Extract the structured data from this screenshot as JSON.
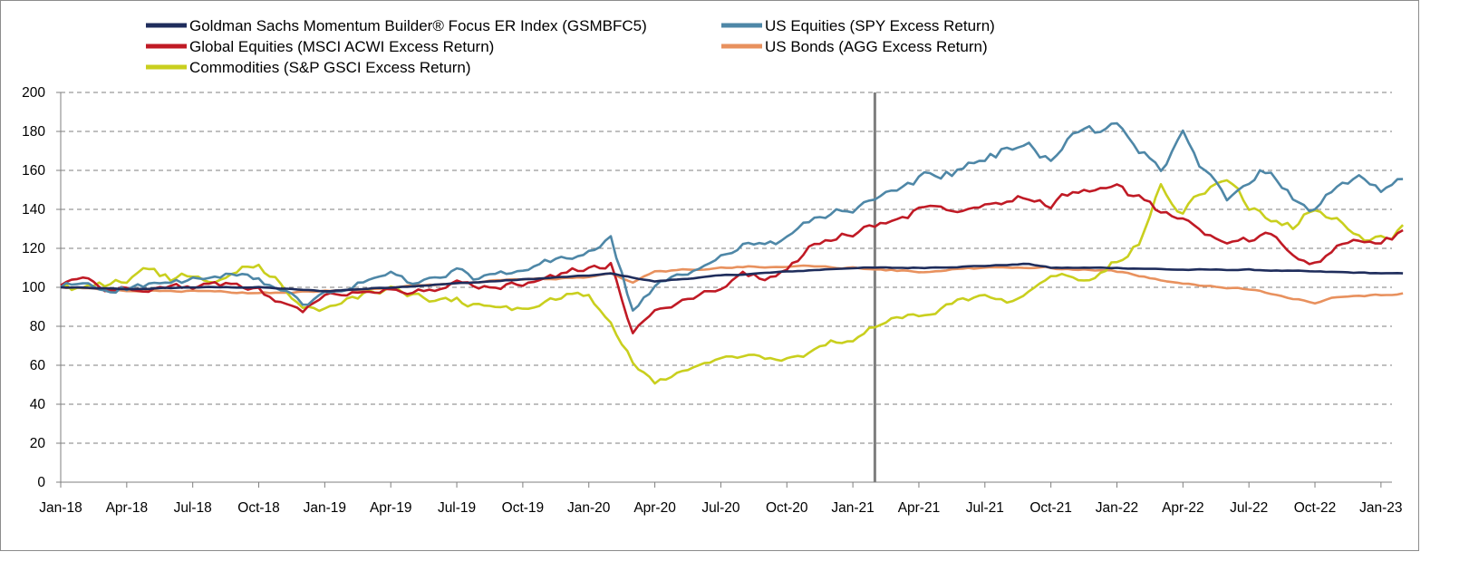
{
  "chart_data": {
    "type": "line",
    "title": "",
    "xlabel": "",
    "ylabel": "",
    "ylim": [
      0,
      200
    ],
    "y_ticks": [
      "0",
      "20",
      "40",
      "60",
      "80",
      "100",
      "120",
      "140",
      "160",
      "180",
      "200"
    ],
    "x_ticks": [
      "Jan-18",
      "Apr-18",
      "Jul-18",
      "Oct-18",
      "Jan-19",
      "Apr-19",
      "Jul-19",
      "Oct-19",
      "Jan-20",
      "Apr-20",
      "Jul-20",
      "Oct-20",
      "Jan-21",
      "Apr-21",
      "Jul-21",
      "Oct-21",
      "Jan-22",
      "Apr-22",
      "Jul-22",
      "Oct-22",
      "Jan-23"
    ],
    "grid": "horizontal dashed",
    "legend_position": "top",
    "vertical_marker": "Feb-21",
    "series": [
      {
        "name": "Goldman Sachs Momentum Builder® Focus ER Index (GSMBFC5)",
        "color": "#1f2d5c",
        "points": [
          [
            "Jan-18",
            100
          ],
          [
            "Apr-18",
            99
          ],
          [
            "Jul-18",
            100
          ],
          [
            "Oct-18",
            100
          ],
          [
            "Jan-19",
            98
          ],
          [
            "Apr-19",
            100
          ],
          [
            "Jul-19",
            102
          ],
          [
            "Oct-19",
            104
          ],
          [
            "Jan-20",
            106
          ],
          [
            "Feb-20",
            107
          ],
          [
            "Apr-20",
            103
          ],
          [
            "Jul-20",
            106
          ],
          [
            "Oct-20",
            108
          ],
          [
            "Jan-21",
            110
          ],
          [
            "Apr-21",
            110
          ],
          [
            "Jul-21",
            111
          ],
          [
            "Sep-21",
            112
          ],
          [
            "Oct-21",
            110
          ],
          [
            "Jan-22",
            110
          ],
          [
            "Apr-22",
            109
          ],
          [
            "Jul-22",
            109
          ],
          [
            "Oct-22",
            108
          ],
          [
            "Feb-23",
            107
          ]
        ]
      },
      {
        "name": "US Equities (SPY Excess Return)",
        "color": "#4e87a7",
        "points": [
          [
            "Jan-18",
            100
          ],
          [
            "Feb-18",
            102
          ],
          [
            "Mar-18",
            99
          ],
          [
            "Apr-18",
            100
          ],
          [
            "Jun-18",
            102
          ],
          [
            "Sep-18",
            106
          ],
          [
            "Oct-18",
            103
          ],
          [
            "Nov-18",
            100
          ],
          [
            "Dec-18",
            90
          ],
          [
            "Jan-19",
            96
          ],
          [
            "Apr-19",
            107
          ],
          [
            "May-19",
            101
          ],
          [
            "Jul-19",
            108
          ],
          [
            "Aug-19",
            104
          ],
          [
            "Oct-19",
            108
          ],
          [
            "Nov-19",
            112
          ],
          [
            "Jan-20",
            118
          ],
          [
            "Feb-20",
            124
          ],
          [
            "Mar-20",
            88
          ],
          [
            "Apr-20",
            100
          ],
          [
            "Jun-20",
            110
          ],
          [
            "Jul-20",
            116
          ],
          [
            "Aug-20",
            124
          ],
          [
            "Sep-20",
            120
          ],
          [
            "Oct-20",
            124
          ],
          [
            "Nov-20",
            135
          ],
          [
            "Jan-21",
            140
          ],
          [
            "Feb-21",
            143
          ],
          [
            "Mar-21",
            150
          ],
          [
            "Apr-21",
            156
          ],
          [
            "Jun-21",
            160
          ],
          [
            "Jul-21",
            165
          ],
          [
            "Aug-21",
            170
          ],
          [
            "Sep-21",
            172
          ],
          [
            "Oct-21",
            166
          ],
          [
            "Nov-21",
            178
          ],
          [
            "Dec-21",
            180
          ],
          [
            "Jan-22",
            182
          ],
          [
            "Feb-22",
            172
          ],
          [
            "Mar-22",
            162
          ],
          [
            "Apr-22",
            176
          ],
          [
            "May-22",
            160
          ],
          [
            "Jun-22",
            146
          ],
          [
            "Jul-22",
            155
          ],
          [
            "Aug-22",
            162
          ],
          [
            "Sep-22",
            148
          ],
          [
            "Oct-22",
            140
          ],
          [
            "Nov-22",
            152
          ],
          [
            "Dec-22",
            154
          ],
          [
            "Jan-23",
            148
          ],
          [
            "Feb-23",
            155
          ]
        ]
      },
      {
        "name": "Global Equities (MSCI ACWI Excess Return)",
        "color": "#c01a25",
        "points": [
          [
            "Jan-18",
            101
          ],
          [
            "Feb-18",
            106
          ],
          [
            "Mar-18",
            98
          ],
          [
            "Apr-18",
            100
          ],
          [
            "Jun-18",
            100
          ],
          [
            "Sep-18",
            101
          ],
          [
            "Oct-18",
            99
          ],
          [
            "Nov-18",
            92
          ],
          [
            "Dec-18",
            88
          ],
          [
            "Jan-19",
            95
          ],
          [
            "Apr-19",
            100
          ],
          [
            "May-19",
            97
          ],
          [
            "Jul-19",
            102
          ],
          [
            "Aug-19",
            99
          ],
          [
            "Oct-19",
            102
          ],
          [
            "Nov-19",
            105
          ],
          [
            "Jan-20",
            110
          ],
          [
            "Feb-20",
            112
          ],
          [
            "Mar-20",
            76
          ],
          [
            "Apr-20",
            88
          ],
          [
            "Jun-20",
            96
          ],
          [
            "Jul-20",
            100
          ],
          [
            "Aug-20",
            106
          ],
          [
            "Sep-20",
            105
          ],
          [
            "Oct-20",
            108
          ],
          [
            "Nov-20",
            120
          ],
          [
            "Jan-21",
            128
          ],
          [
            "Feb-21",
            132
          ],
          [
            "Mar-21",
            135
          ],
          [
            "Apr-21",
            140
          ],
          [
            "Jun-21",
            142
          ],
          [
            "Jul-21",
            144
          ],
          [
            "Aug-21",
            146
          ],
          [
            "Sep-21",
            148
          ],
          [
            "Oct-21",
            142
          ],
          [
            "Nov-21",
            150
          ],
          [
            "Dec-21",
            150
          ],
          [
            "Jan-22",
            150
          ],
          [
            "Feb-22",
            145
          ],
          [
            "Mar-22",
            138
          ],
          [
            "Apr-22",
            136
          ],
          [
            "May-22",
            128
          ],
          [
            "Jun-22",
            120
          ],
          [
            "Jul-22",
            124
          ],
          [
            "Aug-22",
            128
          ],
          [
            "Sep-22",
            118
          ],
          [
            "Oct-22",
            112
          ],
          [
            "Nov-22",
            120
          ],
          [
            "Dec-22",
            124
          ],
          [
            "Jan-23",
            122
          ],
          [
            "Feb-23",
            128
          ]
        ]
      },
      {
        "name": "US Bonds (AGG Excess Return)",
        "color": "#e8915e",
        "points": [
          [
            "Jan-18",
            100
          ],
          [
            "Apr-18",
            98
          ],
          [
            "Jul-18",
            98
          ],
          [
            "Oct-18",
            97
          ],
          [
            "Jan-19",
            98
          ],
          [
            "Apr-19",
            100
          ],
          [
            "Jul-19",
            102
          ],
          [
            "Oct-19",
            104
          ],
          [
            "Jan-20",
            105
          ],
          [
            "Feb-20",
            107
          ],
          [
            "Mar-20",
            102
          ],
          [
            "Apr-20",
            108
          ],
          [
            "Jul-20",
            110
          ],
          [
            "Oct-20",
            111
          ],
          [
            "Jan-21",
            110
          ],
          [
            "Apr-21",
            108
          ],
          [
            "Jul-21",
            110
          ],
          [
            "Oct-21",
            110
          ],
          [
            "Jan-22",
            108
          ],
          [
            "Apr-22",
            102
          ],
          [
            "Jul-22",
            99
          ],
          [
            "Oct-22",
            92
          ],
          [
            "Nov-22",
            95
          ],
          [
            "Jan-23",
            96
          ],
          [
            "Feb-23",
            97
          ]
        ]
      },
      {
        "name": "Commodities (S&P GSCI Excess Return)",
        "color": "#c9cf1e",
        "points": [
          [
            "Jan-18",
            100
          ],
          [
            "Feb-18",
            99
          ],
          [
            "Mar-18",
            101
          ],
          [
            "Apr-18",
            104
          ],
          [
            "May-18",
            110
          ],
          [
            "Jun-18",
            104
          ],
          [
            "Jul-18",
            106
          ],
          [
            "Aug-18",
            104
          ],
          [
            "Sep-18",
            108
          ],
          [
            "Oct-18",
            112
          ],
          [
            "Nov-18",
            102
          ],
          [
            "Dec-18",
            90
          ],
          [
            "Jan-19",
            88
          ],
          [
            "Feb-19",
            94
          ],
          [
            "Apr-19",
            100
          ],
          [
            "May-19",
            96
          ],
          [
            "Jun-19",
            92
          ],
          [
            "Jul-19",
            94
          ],
          [
            "Aug-19",
            90
          ],
          [
            "Sep-19",
            91
          ],
          [
            "Oct-19",
            88
          ],
          [
            "Nov-19",
            92
          ],
          [
            "Dec-19",
            96
          ],
          [
            "Jan-20",
            94
          ],
          [
            "Feb-20",
            82
          ],
          [
            "Mar-20",
            62
          ],
          [
            "Apr-20",
            50
          ],
          [
            "May-20",
            56
          ],
          [
            "Jun-20",
            60
          ],
          [
            "Jul-20",
            62
          ],
          [
            "Aug-20",
            65
          ],
          [
            "Sep-20",
            64
          ],
          [
            "Oct-20",
            63
          ],
          [
            "Nov-20",
            66
          ],
          [
            "Dec-20",
            72
          ],
          [
            "Jan-21",
            74
          ],
          [
            "Feb-21",
            80
          ],
          [
            "Mar-21",
            84
          ],
          [
            "Apr-21",
            86
          ],
          [
            "May-21",
            90
          ],
          [
            "Jun-21",
            94
          ],
          [
            "Jul-21",
            96
          ],
          [
            "Aug-21",
            94
          ],
          [
            "Sep-21",
            100
          ],
          [
            "Oct-21",
            108
          ],
          [
            "Nov-21",
            104
          ],
          [
            "Dec-21",
            106
          ],
          [
            "Jan-22",
            114
          ],
          [
            "Feb-22",
            124
          ],
          [
            "Mar-22",
            152
          ],
          [
            "Apr-22",
            140
          ],
          [
            "May-22",
            150
          ],
          [
            "Jun-22",
            158
          ],
          [
            "Jul-22",
            140
          ],
          [
            "Aug-22",
            136
          ],
          [
            "Sep-22",
            130
          ],
          [
            "Oct-22",
            140
          ],
          [
            "Nov-22",
            134
          ],
          [
            "Dec-22",
            124
          ],
          [
            "Jan-23",
            126
          ],
          [
            "Feb-23",
            130
          ]
        ]
      }
    ]
  }
}
